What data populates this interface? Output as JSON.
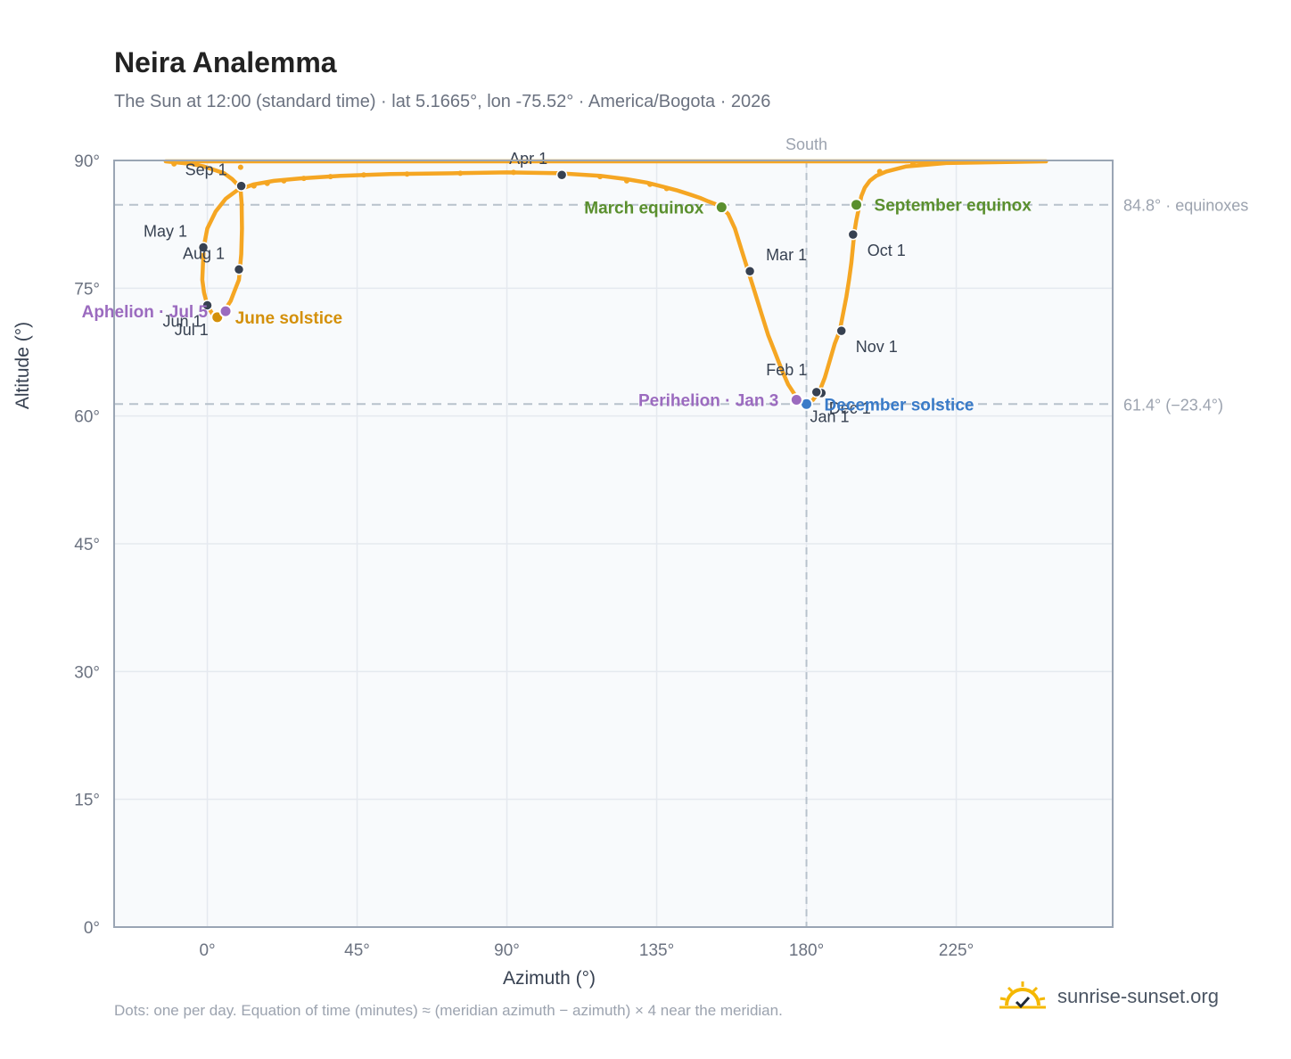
{
  "header": {
    "title": "Neira Analemma",
    "subtitle": "The Sun at 12:00 (standard time) · lat 5.1665°, lon -75.52° · America/Bogota · 2026"
  },
  "footnote": "Dots: one per day. Equation of time (minutes) ≈ (meridian azimuth − azimuth) × 4 near the meridian.",
  "brand": {
    "name": "sunrise-sunset.org",
    "icon": "sun-check-icon",
    "color": "#f5b800"
  },
  "chart_data": {
    "type": "scatter",
    "xlabel": "Azimuth (°)",
    "ylabel": "Altitude (°)",
    "xlim": [
      -28,
      272
    ],
    "ylim": [
      0,
      90
    ],
    "xticks": [
      0,
      45,
      90,
      135,
      180,
      225
    ],
    "yticks": [
      0,
      15,
      30,
      45,
      60,
      75,
      90
    ],
    "xtick_suffix": "°",
    "ytick_suffix": "°",
    "grid": true,
    "colors": {
      "path": "#f5a623",
      "month": "#374151",
      "equinox": "#5a8f2e",
      "june": "#d4900a",
      "december": "#3a7bc8",
      "apsis": "#9b6bbf",
      "ref": "#b8c2cc"
    },
    "meridian": {
      "azimuth": 180,
      "label": "South"
    },
    "reference_lines": [
      {
        "altitude": 84.8,
        "label": "84.8° · equinoxes"
      },
      {
        "altitude": 61.4,
        "label": "61.4° (−23.4°)"
      }
    ],
    "series": [
      {
        "points": [
          [
            180.0,
            61.4
          ],
          [
            182.0,
            61.9
          ],
          [
            184.0,
            63.0
          ],
          [
            185.5,
            64.5
          ],
          [
            187.0,
            66.5
          ],
          [
            188.5,
            68.5
          ],
          [
            190.0,
            70.0
          ],
          [
            191.0,
            72.0
          ],
          [
            192.0,
            74.0
          ],
          [
            192.8,
            76.0
          ],
          [
            193.5,
            78.0
          ],
          [
            194.0,
            80.0
          ],
          [
            194.4,
            81.6
          ],
          [
            195.0,
            83.0
          ],
          [
            195.8,
            84.5
          ],
          [
            196.5,
            85.8
          ],
          [
            197.5,
            86.8
          ],
          [
            199.0,
            87.6
          ],
          [
            201.0,
            88.2
          ],
          [
            204.0,
            88.7
          ],
          [
            210.0,
            89.3
          ],
          [
            222.0,
            89.7
          ],
          [
            252.0,
            89.9
          ],
          [
            -12.5,
            89.9
          ],
          [
            -5.0,
            89.6
          ],
          [
            -1.0,
            89.3
          ],
          [
            2.0,
            88.9
          ],
          [
            5.0,
            88.5
          ],
          [
            7.5,
            87.8
          ],
          [
            9.5,
            87.0
          ],
          [
            10.0,
            86.5
          ],
          [
            10.3,
            85.0
          ],
          [
            10.4,
            82.0
          ],
          [
            10.2,
            79.0
          ],
          [
            9.5,
            76.0
          ],
          [
            8.0,
            74.5
          ],
          [
            7.0,
            73.5
          ],
          [
            5.0,
            72.3
          ],
          [
            3.0,
            71.5
          ],
          [
            1.5,
            72.0
          ],
          [
            0.0,
            73.0
          ],
          [
            -1.0,
            74.5
          ],
          [
            -1.5,
            76.0
          ],
          [
            -1.3,
            78.0
          ],
          [
            -1.0,
            80.0
          ],
          [
            0.0,
            82.0
          ],
          [
            2.5,
            84.0
          ],
          [
            5.5,
            85.5
          ],
          [
            9.0,
            86.5
          ],
          [
            14.0,
            87.2
          ],
          [
            20.0,
            87.6
          ],
          [
            28.0,
            87.9
          ],
          [
            40.0,
            88.2
          ],
          [
            55.0,
            88.4
          ],
          [
            75.0,
            88.5
          ],
          [
            90.0,
            88.6
          ],
          [
            105.0,
            88.5
          ],
          [
            118.0,
            88.2
          ],
          [
            126.0,
            87.8
          ],
          [
            132.0,
            87.4
          ],
          [
            137.0,
            86.9
          ],
          [
            141.0,
            86.5
          ],
          [
            145.0,
            86.0
          ],
          [
            148.0,
            85.6
          ],
          [
            150.5,
            85.2
          ],
          [
            152.5,
            84.9
          ],
          [
            154.5,
            84.5
          ],
          [
            156.5,
            83.7
          ],
          [
            158.5,
            82.0
          ],
          [
            160.5,
            79.5
          ],
          [
            162.5,
            77.0
          ],
          [
            164.5,
            74.5
          ],
          [
            166.5,
            72.0
          ],
          [
            168.5,
            69.5
          ],
          [
            170.5,
            67.5
          ],
          [
            172.5,
            65.5
          ],
          [
            174.5,
            63.7
          ],
          [
            176.5,
            62.5
          ],
          [
            178.0,
            61.8
          ],
          [
            180.0,
            61.4
          ]
        ]
      }
    ],
    "daily_markers": [
      {
        "x": 107,
        "y": 88.3
      },
      {
        "x": 92,
        "y": 88.6
      },
      {
        "x": 76,
        "y": 88.5
      },
      {
        "x": 60,
        "y": 88.4
      },
      {
        "x": 47,
        "y": 88.3
      },
      {
        "x": 37,
        "y": 88.1
      },
      {
        "x": 29,
        "y": 87.9
      },
      {
        "x": 23,
        "y": 87.6
      },
      {
        "x": 18,
        "y": 87.3
      },
      {
        "x": 14,
        "y": 87.0
      },
      {
        "x": -10,
        "y": 89.6
      },
      {
        "x": 10,
        "y": 89.2
      },
      {
        "x": 212,
        "y": 89.6
      },
      {
        "x": 202,
        "y": 88.7
      },
      {
        "x": 118,
        "y": 88.1
      },
      {
        "x": 126,
        "y": 87.6
      },
      {
        "x": 133,
        "y": 87.2
      },
      {
        "x": 138,
        "y": 86.7
      }
    ],
    "month_markers": [
      {
        "label": "Jan 1",
        "x": 180.0,
        "y": 61.4
      },
      {
        "label": "Feb 1",
        "x": 184.5,
        "y": 62.7
      },
      {
        "label": "Mar 1",
        "x": 163.0,
        "y": 77.0
      },
      {
        "label": "Apr 1",
        "x": 106.5,
        "y": 88.3
      },
      {
        "label": "May 1",
        "x": -1.2,
        "y": 79.8
      },
      {
        "label": "Jun 1",
        "x": 0.0,
        "y": 73.0
      },
      {
        "label": "Jul 1",
        "x": 3.0,
        "y": 71.6
      },
      {
        "label": "Aug 1",
        "x": 9.5,
        "y": 77.2
      },
      {
        "label": "Sep 1",
        "x": 10.2,
        "y": 87.0
      },
      {
        "label": "Oct 1",
        "x": 194.0,
        "y": 81.3
      },
      {
        "label": "Nov 1",
        "x": 190.5,
        "y": 70.0
      },
      {
        "label": "Dec 1",
        "x": 183.0,
        "y": 62.8
      }
    ],
    "events": [
      {
        "label": "March equinox",
        "x": 154.5,
        "y": 84.5,
        "color": "#5a8f2e"
      },
      {
        "label": "September equinox",
        "x": 195.0,
        "y": 84.8,
        "color": "#5a8f2e"
      },
      {
        "label": "June solstice",
        "x": 3.0,
        "y": 71.6,
        "color": "#d4900a"
      },
      {
        "label": "December solstice",
        "x": 180.0,
        "y": 61.4,
        "color": "#3a7bc8"
      },
      {
        "label": "Aphelion · Jul 5",
        "x": 5.5,
        "y": 72.3,
        "color": "#9b6bbf"
      },
      {
        "label": "Perihelion · Jan 3",
        "x": 177.0,
        "y": 61.9,
        "color": "#9b6bbf"
      }
    ]
  }
}
